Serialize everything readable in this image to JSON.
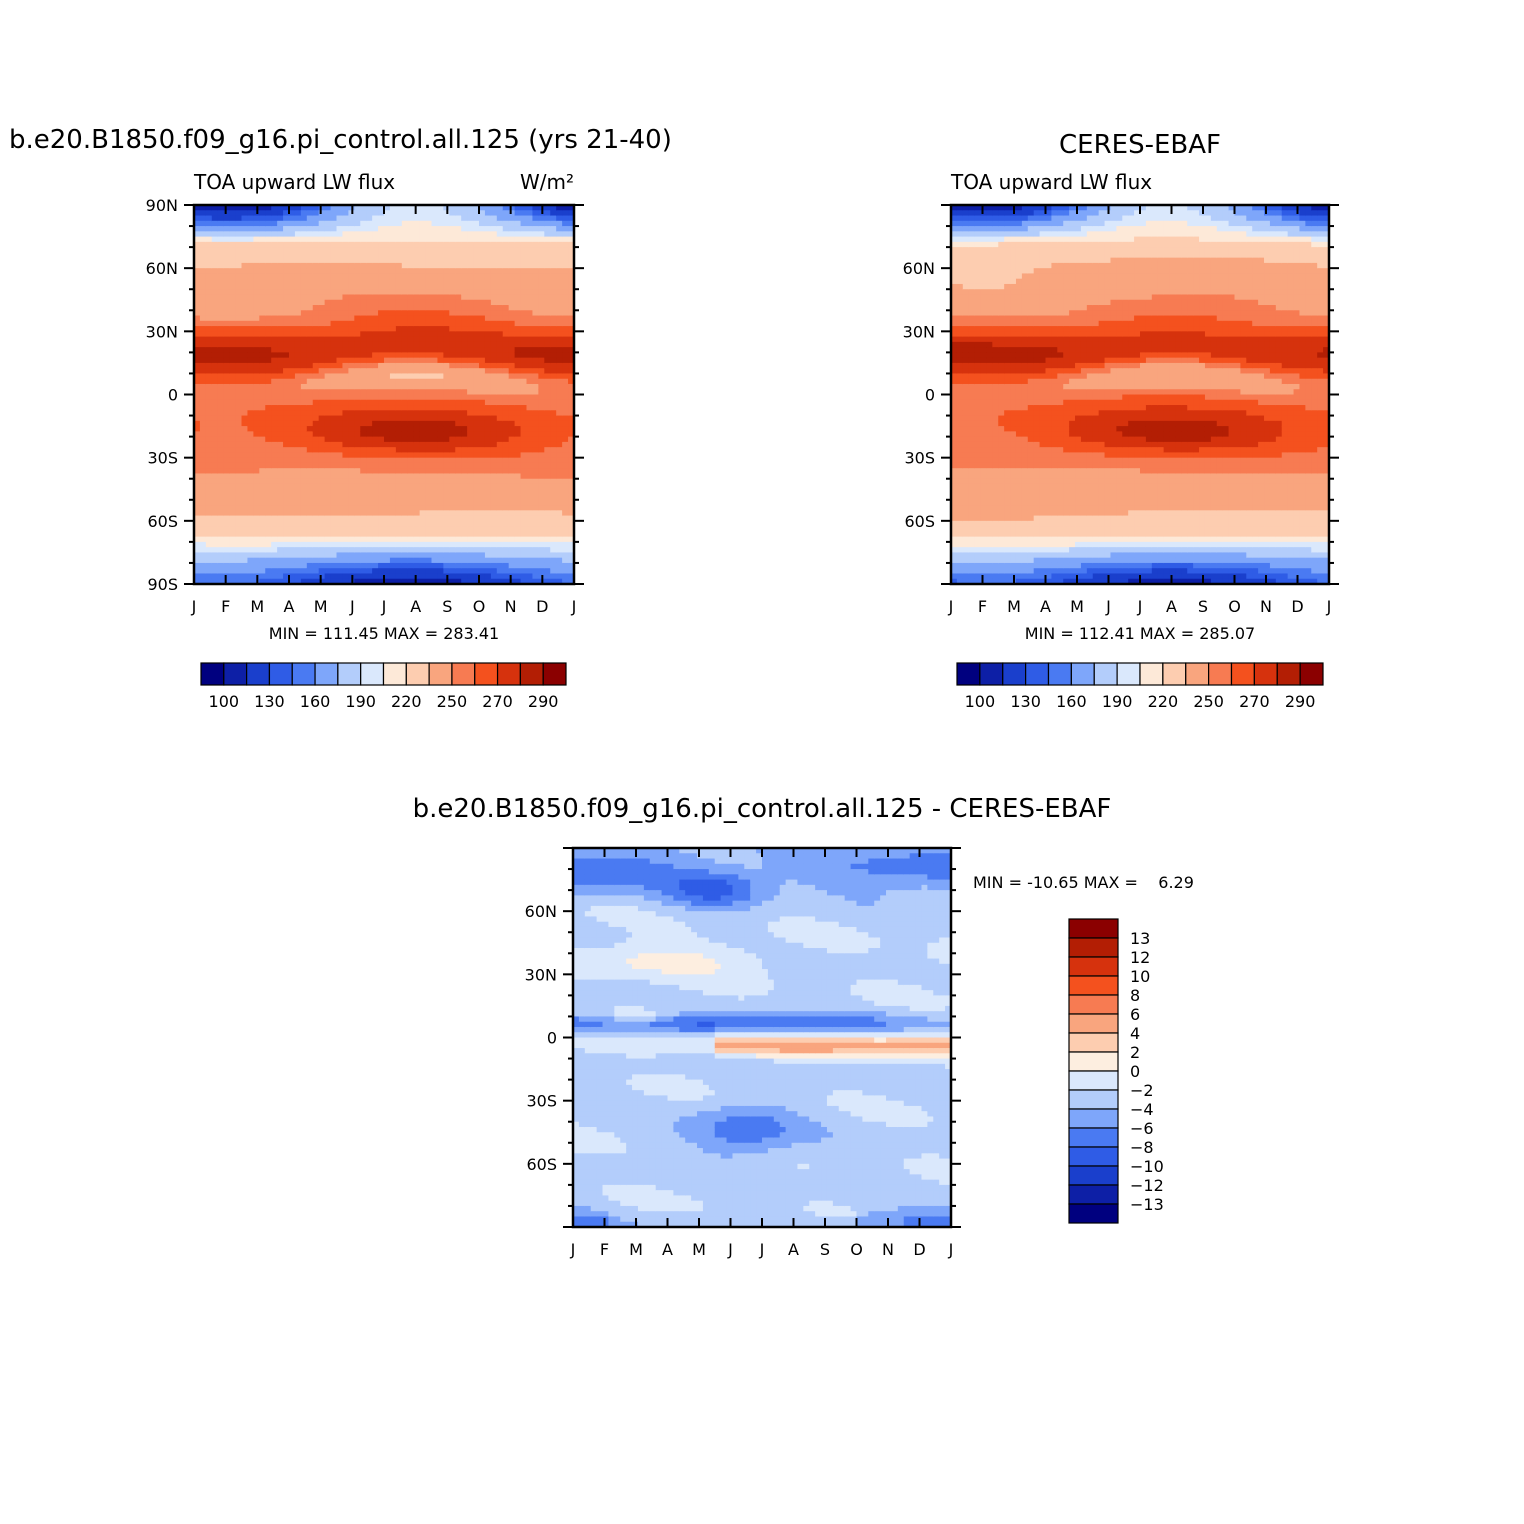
{
  "chart_data": [
    {
      "type": "heatmap",
      "title": "b.e20.B1850.f09_g16.pi_control.all.125 (yrs 21-40)",
      "subtitle_left": "TOA upward LW flux",
      "units": "W/m²",
      "x_ticks": [
        "J",
        "F",
        "M",
        "A",
        "M",
        "J",
        "J",
        "A",
        "S",
        "O",
        "N",
        "D",
        "J"
      ],
      "y_ticks": [
        "90N",
        "60N",
        "30N",
        "0",
        "30S",
        "60S",
        "90S"
      ],
      "y_range": [
        -90,
        90
      ],
      "stats": "MIN = 111.45 MAX = 283.41",
      "colorbar_labels": [
        "100",
        "130",
        "160",
        "190",
        "220",
        "250",
        "270",
        "290"
      ],
      "levels": [
        100,
        110,
        120,
        130,
        140,
        150,
        160,
        170,
        180,
        190,
        200,
        210,
        220,
        230,
        240,
        250,
        260,
        270,
        280,
        290,
        300
      ],
      "field_variant": "model",
      "min": 111.45,
      "max": 283.41
    },
    {
      "type": "heatmap",
      "title": "CERES-EBAF",
      "subtitle_left": "TOA upward LW flux",
      "units": "",
      "x_ticks": [
        "J",
        "F",
        "M",
        "A",
        "M",
        "J",
        "J",
        "A",
        "S",
        "O",
        "N",
        "D",
        "J"
      ],
      "y_ticks": [
        "60N",
        "30N",
        "0",
        "30S",
        "60S"
      ],
      "y_range": [
        -90,
        90
      ],
      "stats": "MIN = 112.41 MAX = 285.07",
      "colorbar_labels": [
        "100",
        "130",
        "160",
        "190",
        "220",
        "250",
        "270",
        "290"
      ],
      "levels": [
        100,
        110,
        120,
        130,
        140,
        150,
        160,
        170,
        180,
        190,
        200,
        210,
        220,
        230,
        240,
        250,
        260,
        270,
        280,
        290,
        300
      ],
      "field_variant": "obs",
      "min": 112.41,
      "max": 285.07
    },
    {
      "type": "heatmap",
      "title": "b.e20.B1850.f09_g16.pi_control.all.125 - CERES-EBAF",
      "x_ticks": [
        "J",
        "F",
        "M",
        "A",
        "M",
        "J",
        "J",
        "A",
        "S",
        "O",
        "N",
        "D",
        "J"
      ],
      "y_ticks": [
        "60N",
        "30N",
        "0",
        "30S",
        "60S"
      ],
      "y_range": [
        -90,
        90
      ],
      "stats": "MIN = -10.65 MAX =    6.29",
      "colorbar_labels": [
        "13",
        "12",
        "10",
        "8",
        "6",
        "4",
        "2",
        "0",
        "-2",
        "-4",
        "-6",
        "-8",
        "-10",
        "-12",
        "-13"
      ],
      "levels": [
        -14,
        -13,
        -12,
        -10,
        -8,
        -6,
        -4,
        -2,
        0,
        2,
        4,
        6,
        8,
        10,
        12,
        13,
        14
      ],
      "field_variant": "diff",
      "min": -10.65,
      "max": 6.29
    }
  ],
  "colors": {
    "abs": [
      "#00007f",
      "#0d1fa6",
      "#1a3fcc",
      "#2f5ce6",
      "#4a7af2",
      "#7ea6fa",
      "#b3cdfb",
      "#dae8fc",
      "#fde9d8",
      "#fdcdb0",
      "#f9a57e",
      "#f77b52",
      "#f4511e",
      "#d6320d",
      "#b31e04",
      "#8b0000"
    ],
    "diff": [
      "#00007f",
      "#0d1fa6",
      "#1a3fcc",
      "#2f5ce6",
      "#4a7af2",
      "#7ea6fa",
      "#b3cdfb",
      "#dae8fc",
      "#fdeee0",
      "#fdcdb0",
      "#f9a57e",
      "#f77b52",
      "#f4511e",
      "#d6320d",
      "#b31e04",
      "#8b0000"
    ]
  }
}
